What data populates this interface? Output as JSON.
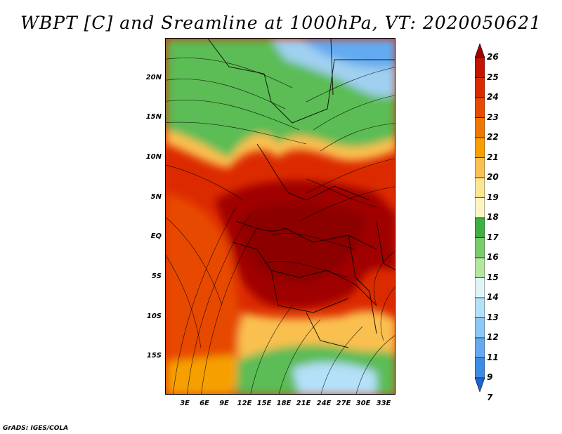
{
  "title": "WBPT [C] and Sreamline at 1000hPa, VT: 2020050621",
  "credit": "GrADS: IGES/COLA",
  "map": {
    "lat_labels": [
      "20N",
      "15N",
      "10N",
      "5N",
      "EQ",
      "5S",
      "10S",
      "15S"
    ],
    "lon_labels": [
      "3E",
      "6E",
      "9E",
      "12E",
      "15E",
      "18E",
      "21E",
      "24E",
      "27E",
      "30E",
      "33E"
    ],
    "lat_range": [
      -20,
      24
    ],
    "lon_range": [
      0,
      35
    ],
    "variable": "Wet-bulb potential temperature (C)",
    "level": "1000hPa"
  },
  "colorbar": {
    "levels": [
      "26",
      "25",
      "24",
      "23",
      "22",
      "21",
      "20",
      "19",
      "18",
      "17",
      "16",
      "15",
      "14",
      "13",
      "12",
      "11",
      "9",
      "7"
    ],
    "colors": [
      "#a00000",
      "#c41400",
      "#dc2a00",
      "#e84a00",
      "#f07800",
      "#f5a000",
      "#fac050",
      "#fde690",
      "#fff5c0",
      "#3cb040",
      "#78cc6a",
      "#b4e6a0",
      "#e0f5f8",
      "#b4e0f8",
      "#8cc8f5",
      "#64aaf0",
      "#3c8ce6",
      "#1e64d2"
    ]
  }
}
